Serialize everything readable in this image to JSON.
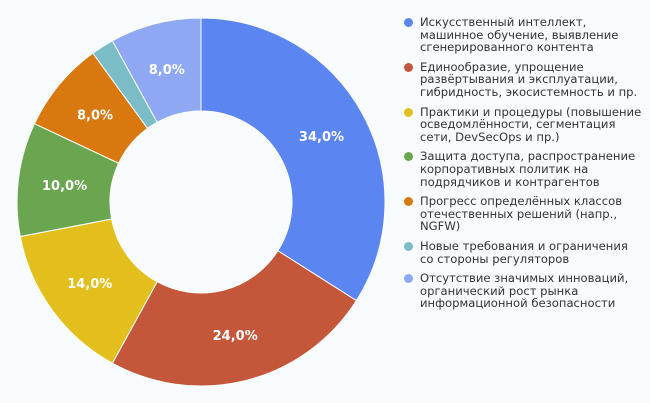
{
  "chart_data": {
    "type": "pie",
    "donut": true,
    "start": "top, clockwise",
    "categories": [
      "Искусственный интеллект, машинное обучение, выявление сгенерированного контента",
      "Единообразие, упрощение развёртывания и эксплуатации, гибридность, экосистемность и пр.",
      "Практики и процедуры (повышение осведомлённости, сегментация сети, DevSecOps и пр.)",
      "Защита доступа, распространение корпоративных политик на подрядчиков и контрагентов",
      "Прогресс определённых классов отечественных решений (напр., NGFW)",
      "Новые требования и ограничения со стороны регуляторов",
      "Отсутствие значимых инноваций, органический рост рынка информационной безопасности"
    ],
    "values": [
      34,
      24,
      14,
      10,
      8,
      2,
      8
    ],
    "data_labels": [
      "34,0%",
      "24,0%",
      "14,0%",
      "10,0%",
      "8,0%",
      "",
      "8,0%"
    ],
    "colors": [
      "#5b85f0",
      "#c4563a",
      "#e3bf1e",
      "#6aa650",
      "#d9780f",
      "#7bbdc6",
      "#8ea8f4"
    ],
    "legend_position": "right"
  }
}
